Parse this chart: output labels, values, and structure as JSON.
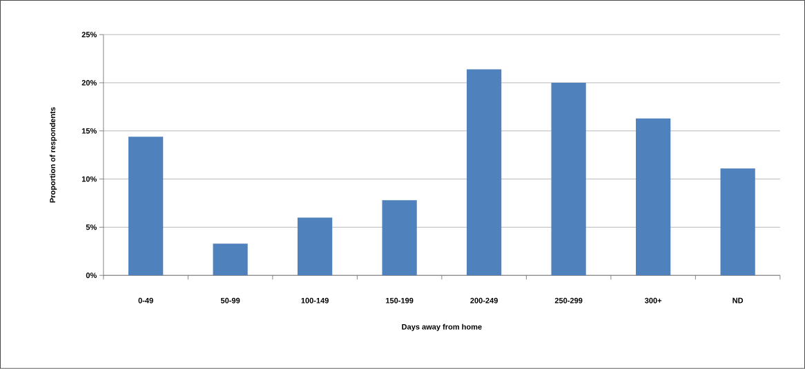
{
  "chart_data": {
    "type": "bar",
    "xlabel": "Days away from home",
    "ylabel": "Proportion of respondents",
    "categories": [
      "0-49",
      "50-99",
      "100-149",
      "150-199",
      "200-249",
      "250-299",
      "300+",
      "ND"
    ],
    "values": [
      14.4,
      3.3,
      6.0,
      7.8,
      21.4,
      20.0,
      16.3,
      11.1
    ],
    "color": "#4f81bd",
    "ylim": [
      0,
      25
    ],
    "yticks": [
      {
        "value": 0,
        "label": "0%"
      },
      {
        "value": 5,
        "label": "5%"
      },
      {
        "value": 10,
        "label": "10%"
      },
      {
        "value": 15,
        "label": "15%"
      },
      {
        "value": 20,
        "label": "20%"
      },
      {
        "value": 25,
        "label": "25%"
      }
    ],
    "grid": "y"
  }
}
